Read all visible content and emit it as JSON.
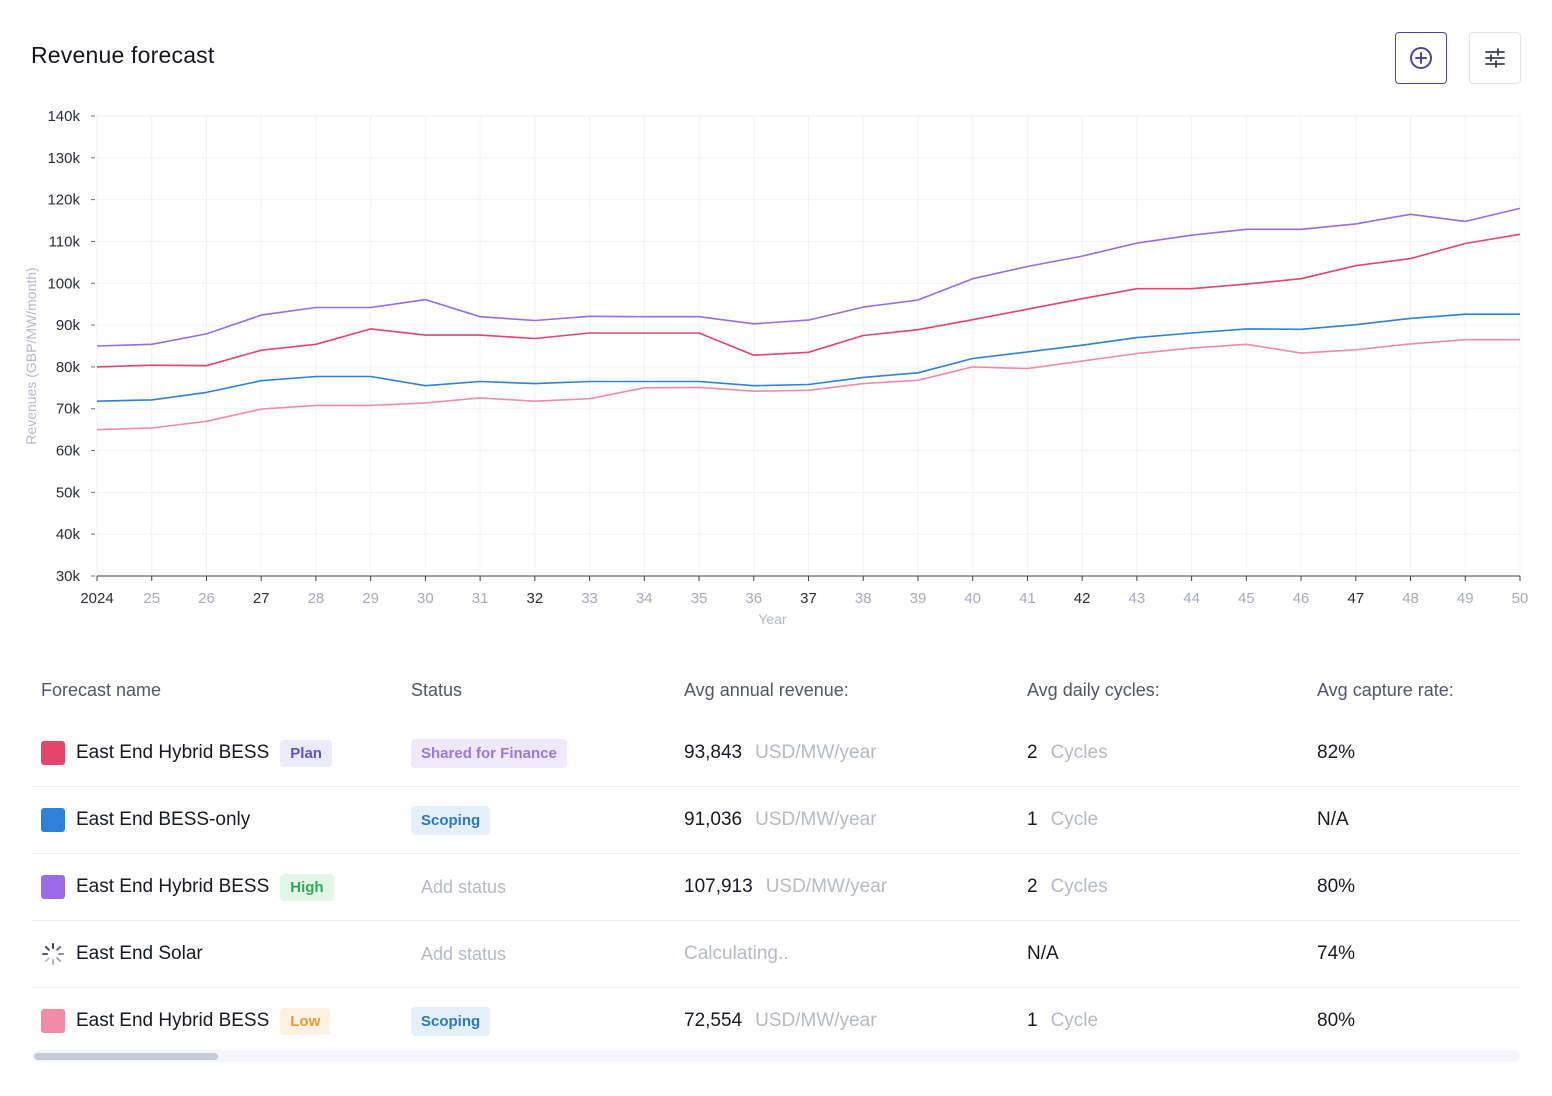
{
  "title": "Revenue forecast",
  "toolbar": {
    "add_icon": "plus-circle-icon",
    "settings_icon": "sliders-icon"
  },
  "colors": {
    "hybrid_plan": "#e3456b",
    "bess_only": "#2f80d9",
    "hybrid_high": "#9b6ae6",
    "hybrid_low": "#f58aa6",
    "accent": "#4b45a8"
  },
  "chart_data": {
    "type": "line",
    "title": "",
    "xlabel": "Year",
    "ylabel": "Revenues (GBP/MW/month)",
    "x": [
      2024,
      2025,
      2026,
      2027,
      2028,
      2029,
      2030,
      2031,
      2032,
      2033,
      2034,
      2035,
      2036,
      2037,
      2038,
      2039,
      2040,
      2041,
      2042,
      2043,
      2044,
      2045,
      2046,
      2047,
      2048,
      2049,
      2050
    ],
    "x_tick_labels": [
      "2024",
      "25",
      "26",
      "27",
      "28",
      "29",
      "30",
      "31",
      "32",
      "33",
      "34",
      "35",
      "36",
      "37",
      "38",
      "39",
      "40",
      "41",
      "42",
      "43",
      "44",
      "45",
      "46",
      "47",
      "48",
      "49",
      "50"
    ],
    "emphasized_ticks": [
      "2024",
      "27",
      "32",
      "37",
      "42",
      "47"
    ],
    "y_ticks": [
      30000,
      40000,
      50000,
      60000,
      70000,
      80000,
      90000,
      100000,
      110000,
      120000,
      130000,
      140000
    ],
    "y_tick_labels": [
      "30k",
      "40k",
      "50k",
      "60k",
      "70k",
      "80k",
      "90k",
      "100k",
      "110k",
      "120k",
      "130k",
      "140k"
    ],
    "ylim": [
      30000,
      140000
    ],
    "grid": true,
    "series": [
      {
        "values": [
          85000,
          85400,
          87900,
          92400,
          94200,
          94200,
          96100,
          92000,
          91100,
          92100,
          92000,
          92000,
          90300,
          91200,
          94300,
          96000,
          101100,
          104000,
          106500,
          109600,
          111500,
          112900,
          112900,
          114200,
          116500,
          114800,
          117900
        ],
        "color_key": "hybrid_high"
      },
      {
        "values": [
          80000,
          80400,
          80300,
          84000,
          85400,
          89100,
          87600,
          87600,
          86800,
          88100,
          88100,
          88100,
          82800,
          83500,
          87500,
          88900,
          91300,
          93800,
          96300,
          98700,
          98700,
          99800,
          101100,
          104200,
          105900,
          109500,
          111700
        ],
        "color_key": "hybrid_plan"
      },
      {
        "values": [
          71800,
          72100,
          73900,
          76700,
          77700,
          77700,
          75500,
          76500,
          76000,
          76500,
          76500,
          76500,
          75500,
          75800,
          77500,
          78600,
          82000,
          83600,
          85200,
          87000,
          88100,
          89100,
          89000,
          90100,
          91600,
          92600,
          92600
        ],
        "color_key": "bess_only"
      },
      {
        "values": [
          65000,
          65400,
          67000,
          69900,
          70800,
          70800,
          71400,
          72600,
          71800,
          72400,
          75000,
          75100,
          74200,
          74400,
          76000,
          76800,
          80000,
          79600,
          81400,
          83200,
          84500,
          85400,
          83300,
          84100,
          85500,
          86500,
          86500
        ],
        "color_key": "hybrid_low"
      }
    ]
  },
  "table": {
    "headers": {
      "name": "Forecast name",
      "status": "Status",
      "revenue": "Avg annual revenue:",
      "cycles": "Avg daily cycles:",
      "capture": "Avg capture rate:"
    },
    "rows": [
      {
        "name": "East End Hybrid BESS",
        "tag": "Plan",
        "status": "Shared for Finance",
        "revenue": "93,843",
        "revenue_unit": "USD/MW/year",
        "cycles": "2",
        "cycles_unit": "Cycles",
        "capture": "82%"
      },
      {
        "name": "East End BESS-only",
        "tag": "",
        "status": "Scoping",
        "revenue": "91,036",
        "revenue_unit": "USD/MW/year",
        "cycles": "1",
        "cycles_unit": "Cycle",
        "capture": "N/A"
      },
      {
        "name": "East End Hybrid BESS",
        "tag": "High",
        "status_placeholder": "Add status",
        "revenue": "107,913",
        "revenue_unit": "USD/MW/year",
        "cycles": "2",
        "cycles_unit": "Cycles",
        "capture": "80%"
      },
      {
        "name": "East End Solar",
        "tag": "",
        "status_placeholder": "Add status",
        "revenue_calculating": "Calculating..",
        "cycles_na": "N/A",
        "capture": "74%"
      },
      {
        "name": "East End Hybrid BESS",
        "tag": "Low",
        "status": "Scoping",
        "revenue": "72,554",
        "revenue_unit": "USD/MW/year",
        "cycles": "1",
        "cycles_unit": "Cycle",
        "capture": "80%"
      }
    ]
  },
  "icons": {
    "loading": "loading-spinner-icon"
  }
}
